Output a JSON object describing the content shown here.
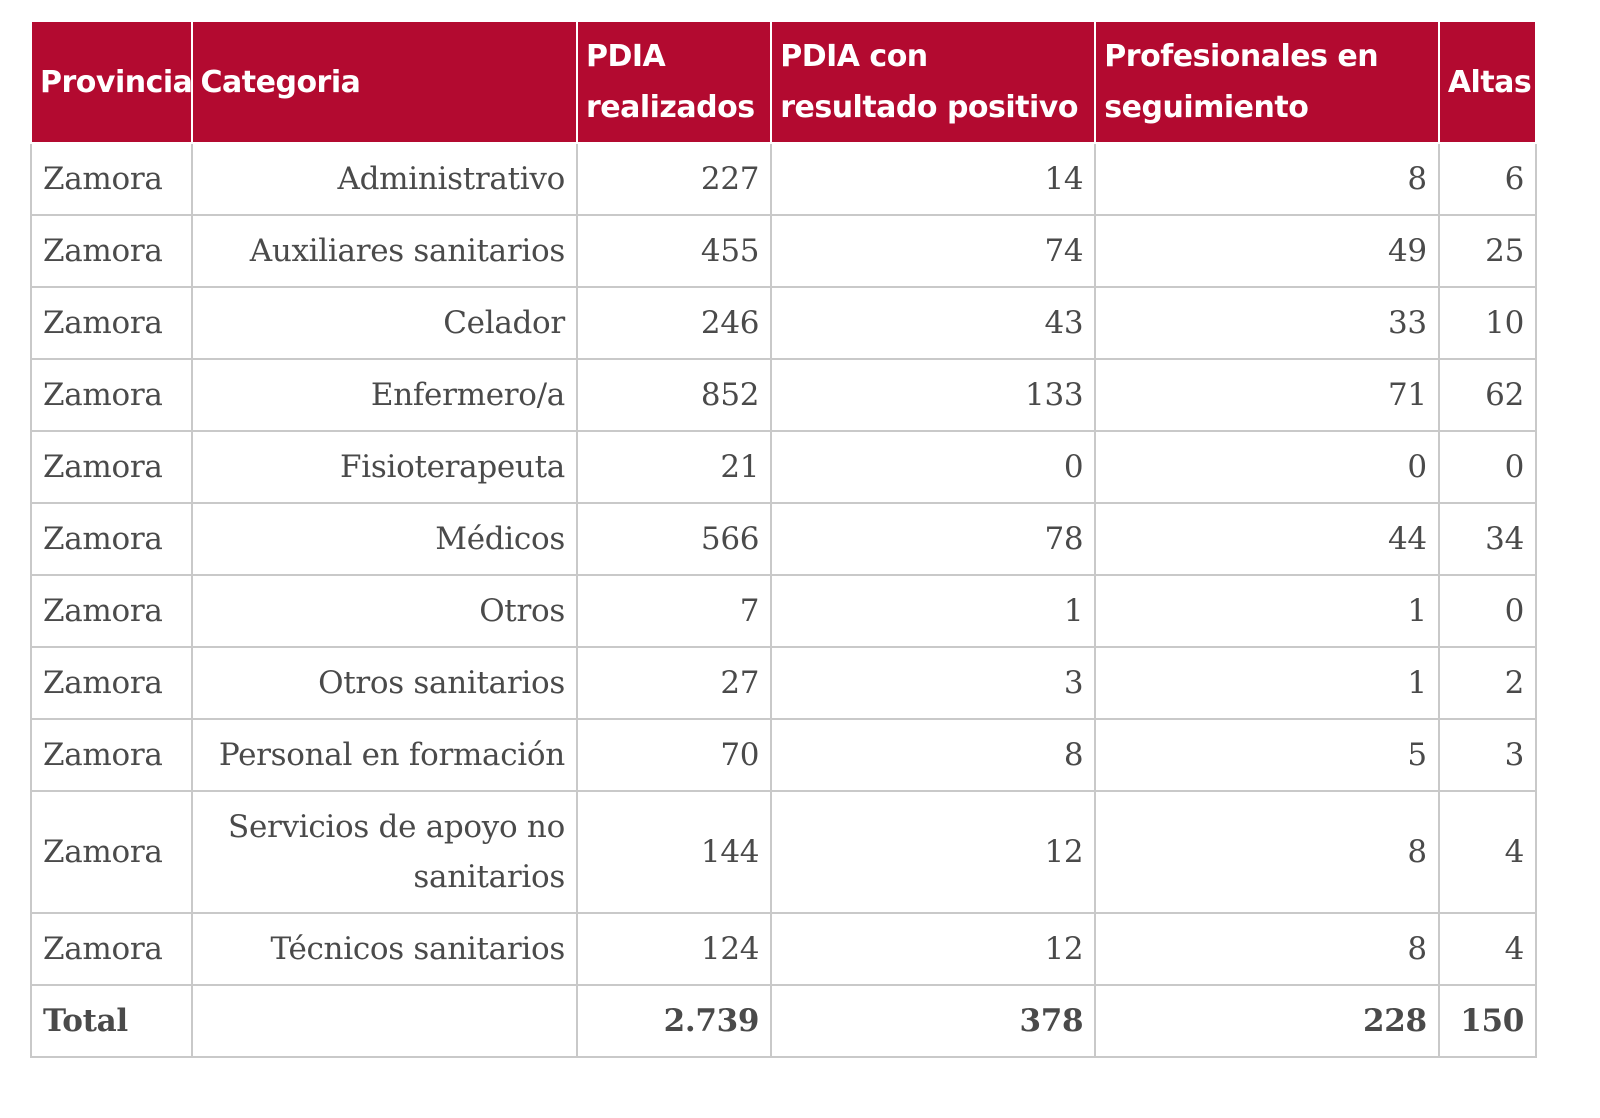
{
  "table": {
    "headers": {
      "provincia": "Provincia",
      "categoria": "Categoria",
      "pdia": "PDIA realizados",
      "positivo": "PDIA con resultado positivo",
      "seguimiento": "Profesionales en seguimiento",
      "altas": "Altas"
    },
    "rows": [
      {
        "provincia": "Zamora",
        "categoria": "Administrativo",
        "pdia": "227",
        "positivo": "14",
        "seguimiento": "8",
        "altas": "6"
      },
      {
        "provincia": "Zamora",
        "categoria": "Auxiliares sanitarios",
        "pdia": "455",
        "positivo": "74",
        "seguimiento": "49",
        "altas": "25"
      },
      {
        "provincia": "Zamora",
        "categoria": "Celador",
        "pdia": "246",
        "positivo": "43",
        "seguimiento": "33",
        "altas": "10"
      },
      {
        "provincia": "Zamora",
        "categoria": "Enfermero/a",
        "pdia": "852",
        "positivo": "133",
        "seguimiento": "71",
        "altas": "62"
      },
      {
        "provincia": "Zamora",
        "categoria": "Fisioterapeuta",
        "pdia": "21",
        "positivo": "0",
        "seguimiento": "0",
        "altas": "0"
      },
      {
        "provincia": "Zamora",
        "categoria": "Médicos",
        "pdia": "566",
        "positivo": "78",
        "seguimiento": "44",
        "altas": "34"
      },
      {
        "provincia": "Zamora",
        "categoria": "Otros",
        "pdia": "7",
        "positivo": "1",
        "seguimiento": "1",
        "altas": "0"
      },
      {
        "provincia": "Zamora",
        "categoria": "Otros sanitarios",
        "pdia": "27",
        "positivo": "3",
        "seguimiento": "1",
        "altas": "2"
      },
      {
        "provincia": "Zamora",
        "categoria": "Personal en formación",
        "pdia": "70",
        "positivo": "8",
        "seguimiento": "5",
        "altas": "3"
      },
      {
        "provincia": "Zamora",
        "categoria": "Servicios de apoyo no sanitarios",
        "pdia": "144",
        "positivo": "12",
        "seguimiento": "8",
        "altas": "4"
      },
      {
        "provincia": "Zamora",
        "categoria": "Técnicos sanitarios",
        "pdia": "124",
        "positivo": "12",
        "seguimiento": "8",
        "altas": "4"
      }
    ],
    "total": {
      "label": "Total",
      "categoria": "",
      "pdia": "2.739",
      "positivo": "378",
      "seguimiento": "228",
      "altas": "150"
    }
  },
  "colors": {
    "header_bg": "#b30a30",
    "header_text": "#ffffff",
    "cell_text": "#4a4a4a",
    "border": "#c9c9c9"
  }
}
